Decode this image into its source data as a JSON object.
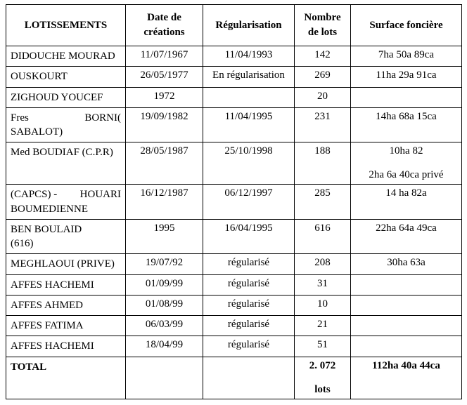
{
  "table": {
    "headers": {
      "lotissements": "LOTISSEMENTS",
      "date_creation_l1": "Date de",
      "date_creation_l2": "créations",
      "regularisation": "Régularisation",
      "nombre_l1": "Nombre",
      "nombre_l2": "de lots",
      "surface": "Surface foncière"
    },
    "rows": [
      {
        "name": "DIDOUCHE MOURAD",
        "date": "11/07/1967",
        "reg": "11/04/1993",
        "lots": "142",
        "surf": "7ha 50a 89ca"
      },
      {
        "name": "OUSKOURT",
        "date": "26/05/1977",
        "reg": "En régularisation",
        "lots": "269",
        "surf": "11ha 29a 91ca"
      },
      {
        "name": "ZIGHOUD YOUCEF",
        "date": "1972",
        "reg": "",
        "lots": "20",
        "surf": ""
      },
      {
        "name": "Fres BORNI( SABALOT)",
        "name_left": "Fres",
        "name_right": "BORNI(",
        "name_line2": "SABALOT)",
        "date": "19/09/1982",
        "reg": "11/04/1995",
        "lots": "231",
        "surf": "14ha 68a 15ca"
      },
      {
        "name": "Med  BOUDIAF (C.P.R)",
        "date": "28/05/1987",
        "reg": "25/10/1998",
        "lots": "188",
        "surf": "10ha 82",
        "surf2": "2ha 6a 40ca privé"
      },
      {
        "name": "(CAPCS) - HOUARI BOUMEDIENNE",
        "name_left": "(CAPCS)    -",
        "name_right": "HOUARI",
        "name_line2": "BOUMEDIENNE",
        "date": "16/12/1987",
        "reg": "06/12/1997",
        "lots": "285",
        "surf": "14 ha  82a"
      },
      {
        "name": "BEN BOULAID (616)",
        "name_line1": "BEN BOULAID",
        "name_line2": "(616)",
        "date": "1995",
        "reg": "16/04/1995",
        "lots": "616",
        "surf": "22ha 64a 49ca"
      },
      {
        "name": "MEGHLAOUI (PRIVE)",
        "date": "19/07/92",
        "reg": "régularisé",
        "lots": "208",
        "surf": "30ha 63a"
      },
      {
        "name": "AFFES  HACHEMI",
        "date": "01/09/99",
        "reg": "régularisé",
        "lots": "31",
        "surf": ""
      },
      {
        "name": "AFFES AHMED",
        "date": "01/08/99",
        "reg": "régularisé",
        "lots": "10",
        "surf": ""
      },
      {
        "name": "AFFES  FATIMA",
        "date": "06/03/99",
        "reg": "régularisé",
        "lots": "21",
        "surf": ""
      },
      {
        "name": "AFFES  HACHEMI",
        "date": "18/04/99",
        "reg": "régularisé",
        "lots": "51",
        "surf": ""
      }
    ],
    "total": {
      "label": "TOTAL",
      "lots_l1": "2. 072",
      "lots_l2": "lots",
      "surf": "112ha  40a  44ca"
    }
  },
  "style": {
    "font_family": "Times New Roman",
    "font_size_pt": 11,
    "border_color": "#000000",
    "background": "#ffffff"
  }
}
